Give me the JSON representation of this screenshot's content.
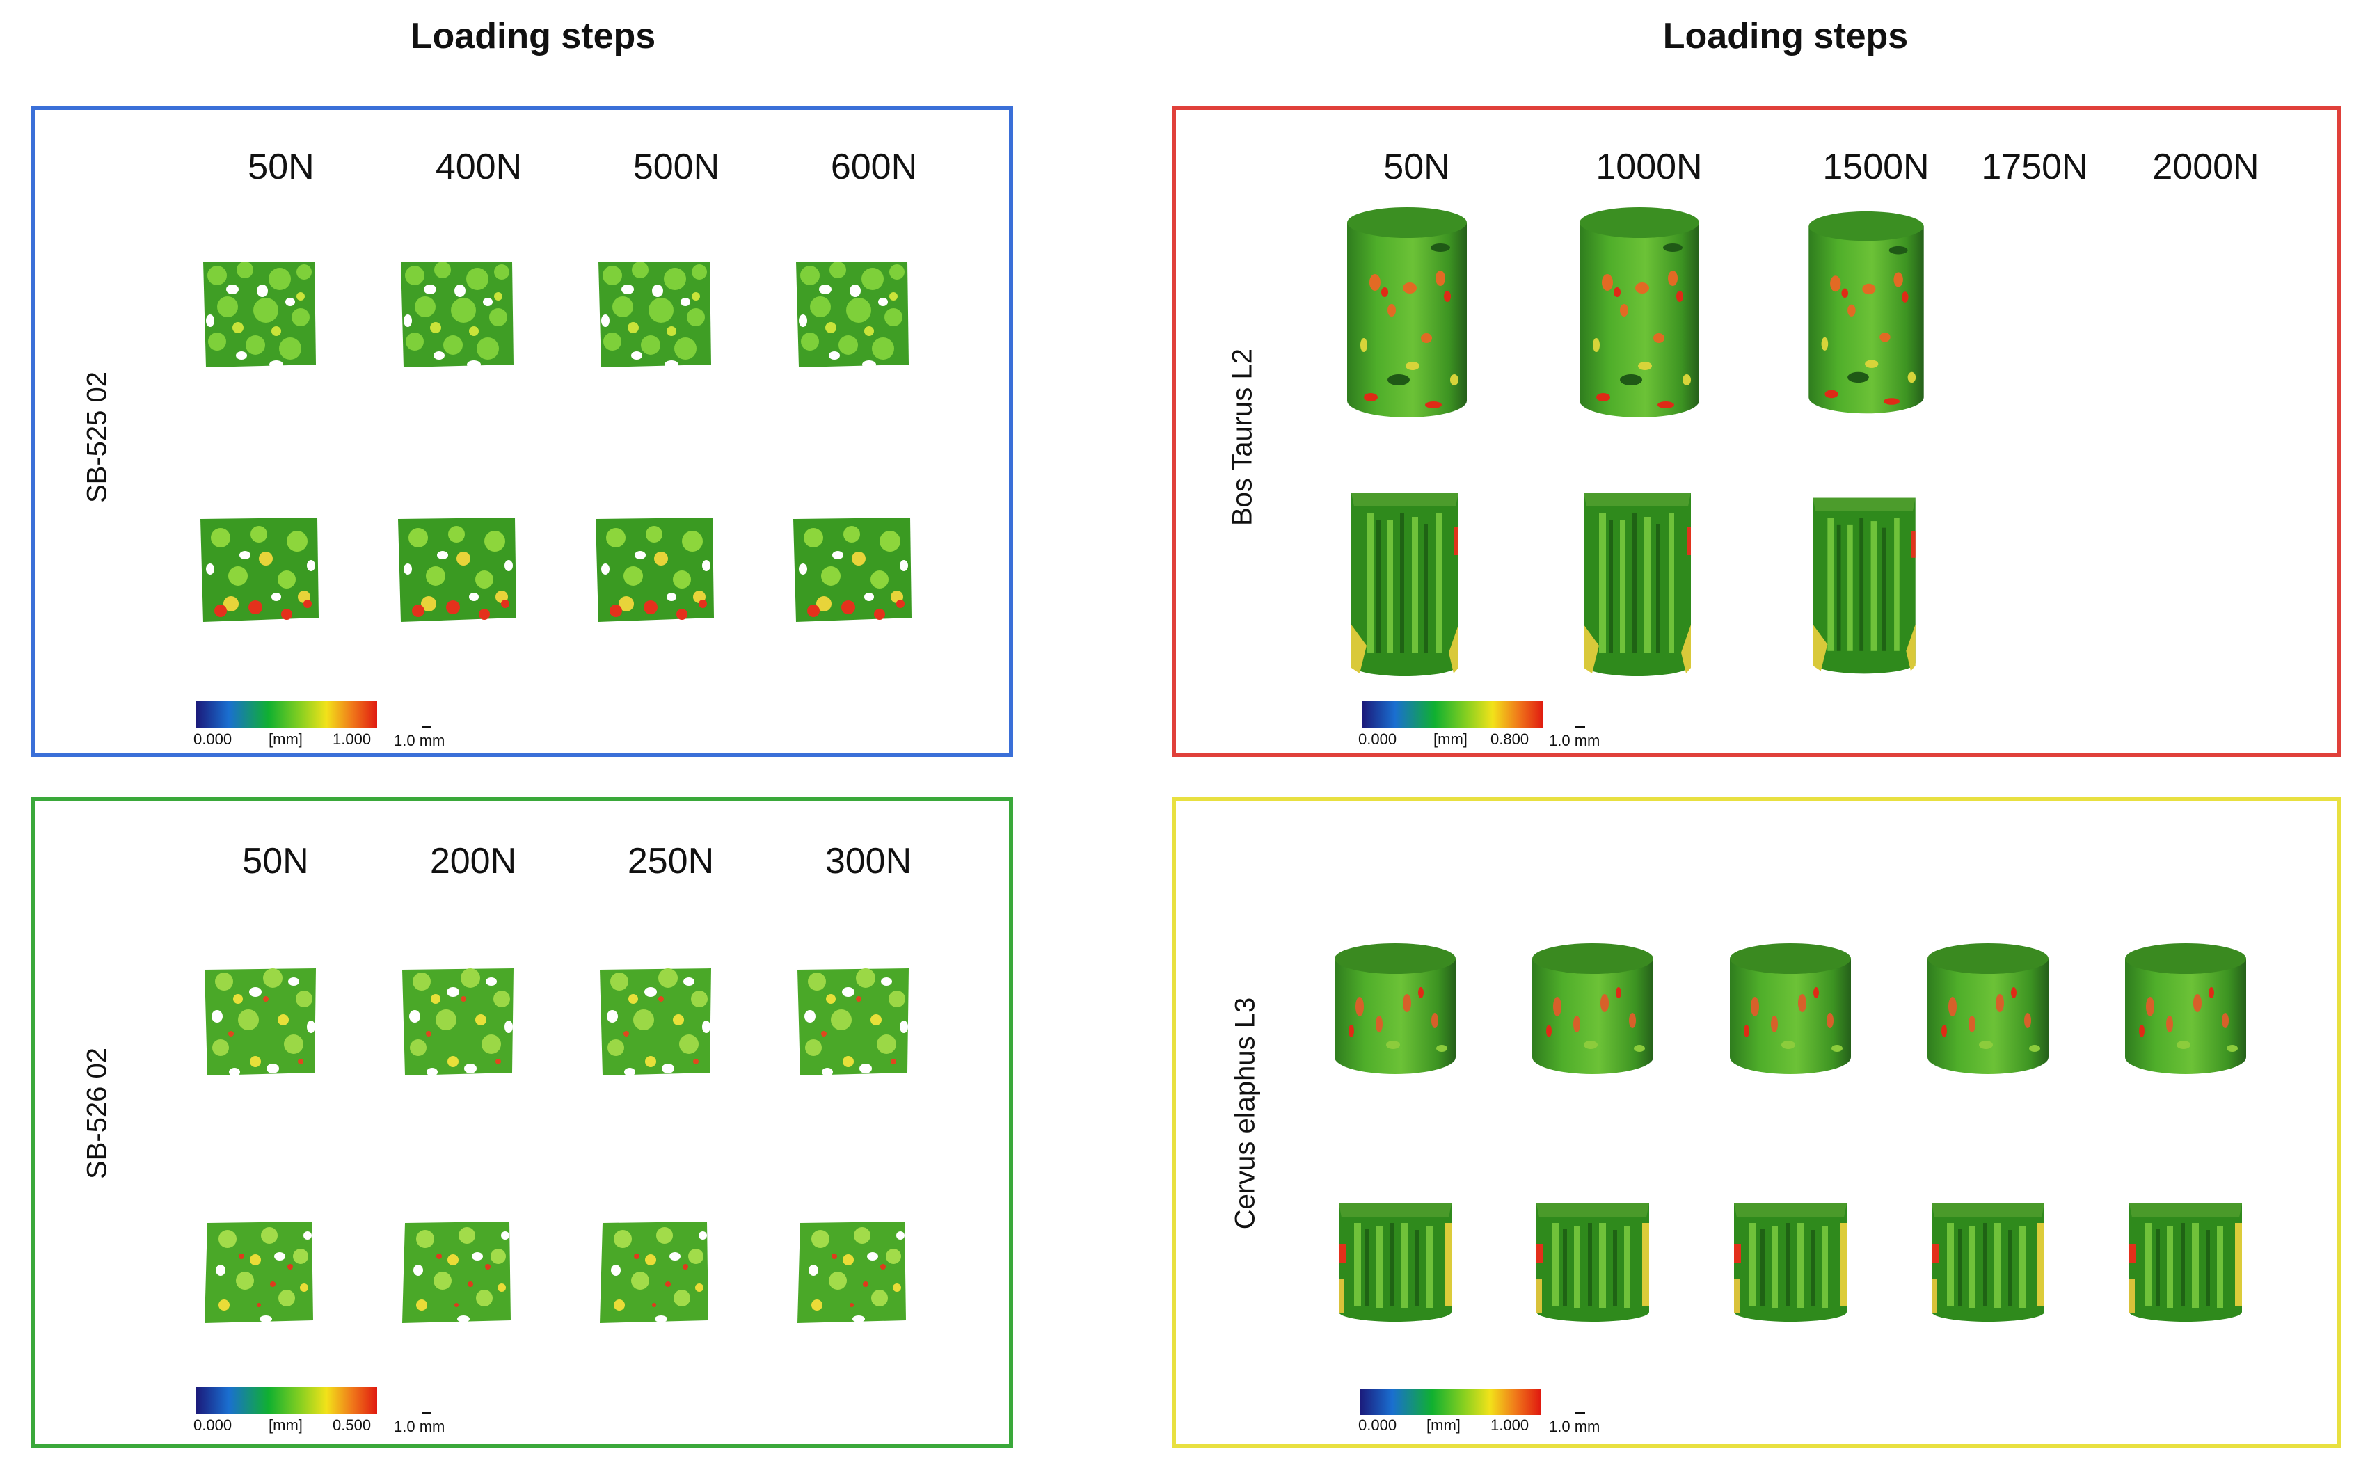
{
  "headings": {
    "left": "Loading steps",
    "right": "Loading steps"
  },
  "panels": {
    "sb525": {
      "title": "SB-525 02",
      "border_color": "#3a6fd8",
      "loads": [
        "50N",
        "400N",
        "500N",
        "600N"
      ],
      "colorbar": {
        "min": "0.000",
        "unit": "[mm]",
        "max": "1.000",
        "scale": "1.0 mm"
      }
    },
    "bos": {
      "title": "Bos Taurus L2",
      "border_color": "#e0403a",
      "loads": [
        "50N",
        "1000N",
        "1500N",
        "1750N",
        "2000N"
      ],
      "colorbar": {
        "min": "0.000",
        "unit": "[mm]",
        "max": "0.800",
        "scale": "1.0 mm"
      }
    },
    "sb526": {
      "title": "SB-526 02",
      "border_color": "#3aa83a",
      "loads": [
        "50N",
        "200N",
        "250N",
        "300N"
      ],
      "colorbar": {
        "min": "0.000",
        "unit": "[mm]",
        "max": "0.500",
        "scale": "1.0 mm"
      }
    },
    "cervus": {
      "title": "Cervus elaphus L3",
      "border_color": "#e8e040",
      "loads": [],
      "colorbar": {
        "min": "0.000",
        "unit": "[mm]",
        "max": "1.000",
        "scale": "1.0 mm"
      }
    }
  },
  "colormap": [
    "#1b1a7a",
    "#1a6fd0",
    "#10b030",
    "#8ad020",
    "#f2e21a",
    "#f07a1a",
    "#e01a10"
  ]
}
